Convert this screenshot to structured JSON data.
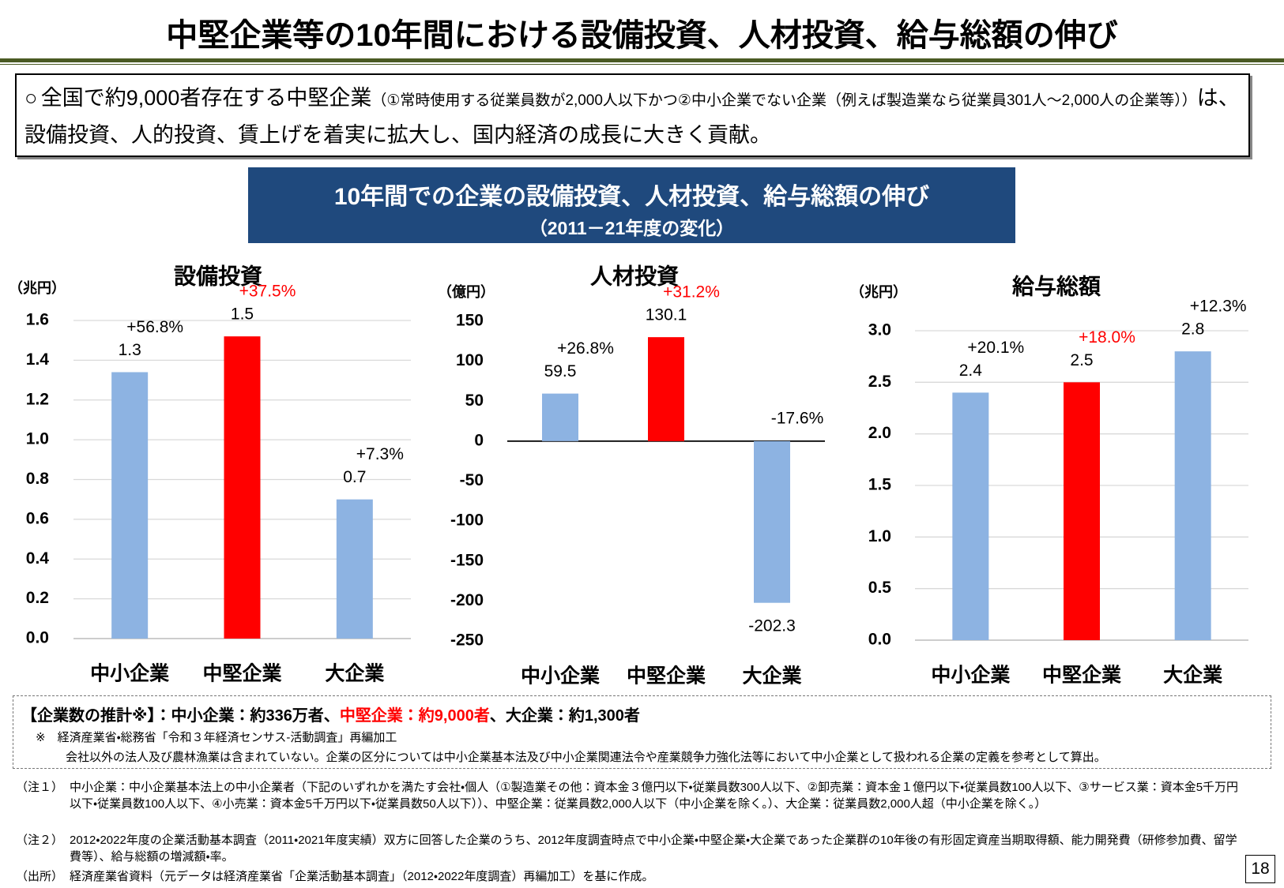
{
  "header": {
    "title": "中堅企業等の10年間における設備投資、人材投資、給与総額の伸び"
  },
  "intro": {
    "bullet": "○",
    "lead": "全国で約9,000者存在する中堅企業",
    "note": "（①常時使用する従業員数が2,000人以下かつ②中小企業でない企業（例えば製造業なら従業員301人～2,000人の企業等））",
    "tail": "は、設備投資、人的投資、賃上げを着実に拡大し、国内経済の成長に大きく貢献。"
  },
  "banner": {
    "title": "10年間での企業の設備投資、人材投資、給与総額の伸び",
    "subtitle": "（2011－21年度の変化）"
  },
  "chart_data": [
    {
      "type": "bar",
      "title": "設備投資",
      "y_label": "（兆円）",
      "categories": [
        "中小企業",
        "中堅企業",
        "大企業"
      ],
      "values": [
        1.34,
        1.52,
        0.7
      ],
      "value_labels": [
        "1.3",
        "1.5",
        "0.7"
      ],
      "growth": [
        "+56.8%",
        "+37.5%",
        "+7.3%"
      ],
      "colors": [
        "#8db3e2",
        "#ff0000",
        "#8db3e2"
      ],
      "growth_colors": [
        "#000000",
        "#ff0000",
        "#000000"
      ],
      "ylim": [
        0,
        1.6
      ],
      "yticks": [
        {
          "value": 0,
          "label": "0.0"
        },
        0.2,
        0.4,
        0.6,
        0.8,
        {
          "value": 1,
          "label": "1.0"
        },
        1.2,
        1.4,
        1.6
      ],
      "grid": true
    },
    {
      "type": "bar",
      "title": "人材投資",
      "y_label": "（億円）",
      "categories": [
        "中小企業",
        "中堅企業",
        "大企業"
      ],
      "values": [
        59.5,
        130.1,
        -202.3
      ],
      "growth": [
        "+26.8%",
        "+31.2%",
        "-17.6%"
      ],
      "colors": [
        "#8db3e2",
        "#ff0000",
        "#8db3e2"
      ],
      "growth_colors": [
        "#000000",
        "#ff0000",
        "#000000"
      ],
      "ylim": [
        -250,
        150
      ],
      "yticks": [
        -250,
        -200,
        -150,
        -100,
        -50,
        0,
        50,
        100,
        150
      ],
      "grid": false
    },
    {
      "type": "bar",
      "title": "給与総額",
      "y_label": "（兆円）",
      "categories": [
        "中小企業",
        "中堅企業",
        "大企業"
      ],
      "values": [
        2.4,
        2.5,
        2.8
      ],
      "growth": [
        "+20.1%",
        "+18.0%",
        "+12.3%"
      ],
      "colors": [
        "#8db3e2",
        "#ff0000",
        "#8db3e2"
      ],
      "growth_colors": [
        "#000000",
        "#ff0000",
        "#000000"
      ],
      "ylim": [
        0,
        3
      ],
      "yticks": [
        {
          "value": 0,
          "label": "0.0"
        },
        0.5,
        {
          "value": 1,
          "label": "1.0"
        },
        1.5,
        {
          "value": 2,
          "label": "2.0"
        },
        2.5,
        {
          "value": 3,
          "label": "3.0"
        }
      ],
      "grid": true
    }
  ],
  "summary": {
    "parts": [
      "【企業数の推計※】：中小企業：約336万者、",
      "中堅企業：約9,000者",
      "、大企業：約1,300者"
    ],
    "source": "※　経済産業省・総務省「令和３年経済センサス-活動調査」再編加工",
    "remark": "会社以外の法人及び農林漁業は含まれていない。企業の区分については中小企業基本法及び中小企業関連法令や産業競争力強化法等において中小企業として扱われる企業の定義を参考として算出。"
  },
  "notes": [
    {
      "label": "（注１）",
      "text": "中小企業：中小企業基本法上の中小企業者（下記のいずれかを満たす会社・個人（①製造業その他：資本金３億円以下・従業員数300人以下、②卸売業：資本金１億円以下・従業員数100人以下、③サービス業：資本金5千万円以下・従業員数100人以下、④小売業：資本金5千万円以下・従業員数50人以下））、中堅企業：従業員数2,000人以下（中小企業を除く。）、大企業：従業員数2,000人超（中小企業を除く。）"
    },
    {
      "label": "（注２）",
      "text": "2012・2022年度の企業活動基本調査（2011・2021年度実績）双方に回答した企業のうち、2012年度調査時点で中小企業・中堅企業・大企業であった企業群の10年後の有形固定資産当期取得額、能力開発費（研修参加費、留学費等）、給与総額の増減額・率。"
    },
    {
      "label": "（出所）",
      "text": "経済産業省資料（元データは経済産業省「企業活動基本調査」（2012・2022年度調査）再編加工）を基に作成。"
    }
  ],
  "page_number": "18"
}
